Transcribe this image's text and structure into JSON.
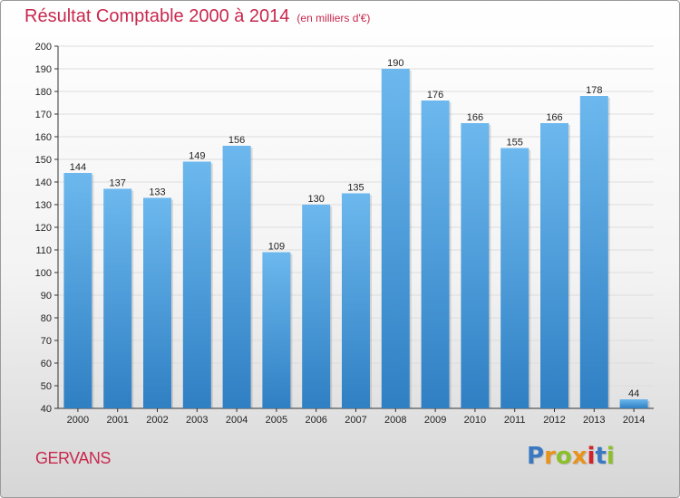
{
  "header": {
    "title": "Résultat Comptable 2000 à 2014",
    "subtitle": "(en milliers d'€)"
  },
  "footer": {
    "commune": "GERVANS",
    "logo": {
      "letters": [
        "P",
        "r",
        "o",
        "x",
        "i",
        "t",
        "i"
      ],
      "colors": [
        "#3a78c2",
        "#e8931c",
        "#8cbf2b",
        "#e8931c",
        "#d2232a",
        "#3a78c2",
        "#8cbf2b"
      ]
    }
  },
  "colors": {
    "title": "#c8284d",
    "bar_light": "#6cb8ee",
    "bar_dark": "#2f7fc3",
    "grid": "#dddddd",
    "axis_text": "#222222"
  },
  "chart_data": {
    "type": "bar",
    "categories": [
      "2000",
      "2001",
      "2002",
      "2003",
      "2004",
      "2005",
      "2006",
      "2007",
      "2008",
      "2009",
      "2010",
      "2011",
      "2012",
      "2013",
      "2014"
    ],
    "values": [
      144,
      137,
      133,
      149,
      156,
      109,
      130,
      135,
      190,
      176,
      166,
      155,
      166,
      178,
      44
    ],
    "ylim": [
      40,
      200
    ],
    "ytick_step": 10,
    "yticks": [
      "40",
      "50",
      "60",
      "70",
      "80",
      "90",
      "100",
      "110",
      "120",
      "130",
      "140",
      "150",
      "160",
      "170",
      "180",
      "190",
      "200"
    ],
    "grid": true,
    "legend": "none",
    "data_labels": true
  }
}
